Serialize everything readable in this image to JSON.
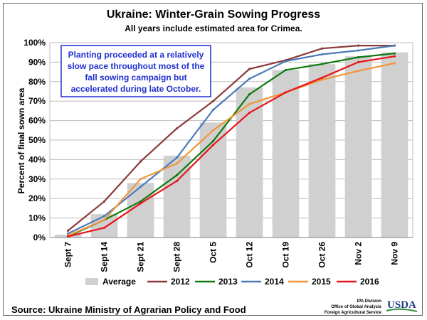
{
  "chart_data": {
    "type": "bar+line",
    "title": "Ukraine: Winter-Grain Sowing Progress",
    "subtitle": "All years include estimated area for Crimea.",
    "ylabel": "Percent of final sown area",
    "xlabel": "",
    "ylim": [
      0,
      100
    ],
    "yticks": [
      "0%",
      "10%",
      "20%",
      "30%",
      "40%",
      "50%",
      "60%",
      "70%",
      "80%",
      "90%",
      "100%"
    ],
    "categories": [
      "Sept 7",
      "Sept 14",
      "Sept 21",
      "Sept 28",
      "Oct 5",
      "Oct 12",
      "Oct 19",
      "Oct 26",
      "Nov 2",
      "Nov 9"
    ],
    "grid": true,
    "legend_position": "bottom",
    "series": [
      {
        "name": "Average",
        "type": "bar",
        "color": "#d0d0d0",
        "values": [
          1.5,
          12,
          28,
          42,
          59,
          77,
          86,
          89,
          93,
          95
        ]
      },
      {
        "name": "2012",
        "type": "line",
        "color": "#8b3a3a",
        "values": [
          3.5,
          18.5,
          39,
          56,
          70,
          86.5,
          91,
          97,
          98.5,
          98.5
        ]
      },
      {
        "name": "2013",
        "type": "line",
        "color": "#0f7a0f",
        "values": [
          0.5,
          9,
          18.5,
          32,
          49.5,
          73.5,
          86,
          89,
          92.5,
          94.5
        ]
      },
      {
        "name": "2014",
        "type": "line",
        "color": "#4a7ab8",
        "values": [
          2,
          11,
          26,
          41,
          65.5,
          81.5,
          90.5,
          94,
          96,
          98.5
        ]
      },
      {
        "name": "2015",
        "type": "line",
        "color": "#f0963a",
        "values": [
          1,
          9,
          30,
          38,
          55,
          68.5,
          74.5,
          81,
          85.5,
          89.5
        ]
      },
      {
        "name": "2016",
        "type": "line",
        "color": "#e8141c",
        "values": [
          0.5,
          5,
          17.5,
          29,
          47.5,
          64,
          74.5,
          82,
          90,
          93
        ]
      }
    ],
    "annotation": [
      "Planting proceeded at a relatively",
      "slow pace throughout  most of the",
      "fall sowing campaign but",
      "accelerated during late October."
    ]
  },
  "footer": {
    "source": "Source:  Ukraine Ministry of Agrarian Policy and Food",
    "credit_lines": [
      "IPA Division",
      "Office of Global Analysis",
      "Foreign Agricultural Service"
    ],
    "logo_text": "USDA"
  },
  "colors": {
    "annotation_border": "#1f2fd0",
    "annotation_text": "#1f2fd0",
    "gridline": "#bdbdbd"
  }
}
